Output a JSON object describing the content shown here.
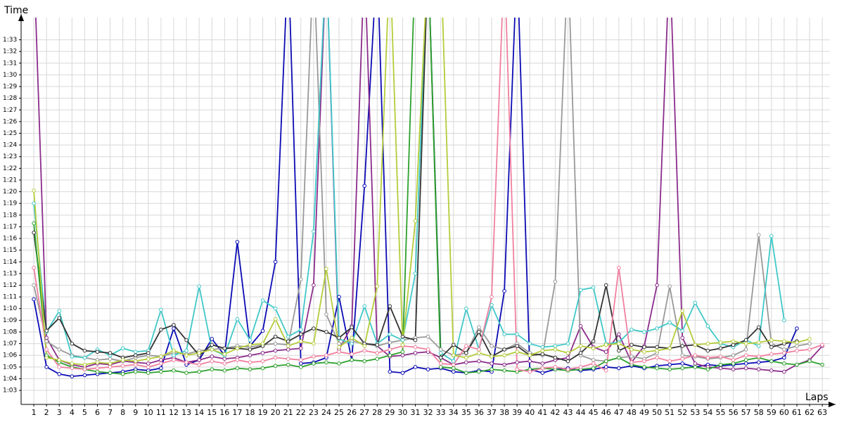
{
  "chart_data": {
    "type": "line",
    "x_label": "Laps",
    "y_label": "Time",
    "x": [
      1,
      2,
      3,
      4,
      5,
      6,
      7,
      8,
      9,
      10,
      11,
      12,
      13,
      14,
      15,
      16,
      17,
      18,
      19,
      20,
      21,
      22,
      23,
      24,
      25,
      26,
      27,
      28,
      29,
      30,
      31,
      32,
      33,
      34,
      35,
      36,
      37,
      38,
      39,
      40,
      41,
      42,
      43,
      44,
      45,
      46,
      47,
      48,
      49,
      50,
      51,
      52,
      53,
      54,
      55,
      56,
      57,
      58,
      59,
      60,
      61,
      62,
      63
    ],
    "xlim": [
      0,
      63.6
    ],
    "xticks": [
      1,
      2,
      3,
      4,
      5,
      6,
      7,
      8,
      9,
      10,
      11,
      12,
      13,
      14,
      15,
      16,
      17,
      18,
      19,
      20,
      21,
      22,
      23,
      24,
      25,
      26,
      27,
      28,
      29,
      30,
      31,
      32,
      33,
      34,
      35,
      36,
      37,
      38,
      39,
      40,
      41,
      42,
      43,
      44,
      45,
      46,
      47,
      48,
      49,
      50,
      51,
      52,
      53,
      54,
      55,
      56,
      57,
      58,
      59,
      60,
      61,
      62,
      63
    ],
    "ylim": [
      61.8,
      94.9
    ],
    "yticks": [
      {
        "value": 63,
        "label": "1:03"
      },
      {
        "value": 64,
        "label": "1:04"
      },
      {
        "value": 65,
        "label": "1:05"
      },
      {
        "value": 66,
        "label": "1:06"
      },
      {
        "value": 67,
        "label": "1:07"
      },
      {
        "value": 68,
        "label": "1:08"
      },
      {
        "value": 69,
        "label": "1:09"
      },
      {
        "value": 70,
        "label": "1:10"
      },
      {
        "value": 71,
        "label": "1:11"
      },
      {
        "value": 72,
        "label": "1:12"
      },
      {
        "value": 73,
        "label": "1:13"
      },
      {
        "value": 74,
        "label": "1:14"
      },
      {
        "value": 75,
        "label": "1:15"
      },
      {
        "value": 76,
        "label": "1:16"
      },
      {
        "value": 77,
        "label": "1:17"
      },
      {
        "value": 78,
        "label": "1:18"
      },
      {
        "value": 79,
        "label": "1:19"
      },
      {
        "value": 80,
        "label": "1:20"
      },
      {
        "value": 81,
        "label": "1:21"
      },
      {
        "value": 82,
        "label": "1:22"
      },
      {
        "value": 83,
        "label": "1:23"
      },
      {
        "value": 84,
        "label": "1:24"
      },
      {
        "value": 85,
        "label": "1:25"
      },
      {
        "value": 86,
        "label": "1:26"
      },
      {
        "value": 87,
        "label": "1:27"
      },
      {
        "value": 88,
        "label": "1:28"
      },
      {
        "value": 89,
        "label": "1:29"
      },
      {
        "value": 90,
        "label": "1:30"
      },
      {
        "value": 91,
        "label": "1:31"
      },
      {
        "value": 92,
        "label": "1:32"
      },
      {
        "value": 93,
        "label": "1:33"
      }
    ],
    "grid": true,
    "series": [
      {
        "color": "#0a0ab4",
        "values": [
          70.8,
          65.0,
          64.4,
          64.2,
          64.3,
          64.4,
          64.5,
          64.6,
          64.8,
          64.7,
          64.9,
          68.3,
          65.2,
          65.6,
          67.4,
          66.0,
          75.7,
          66.8,
          68.1,
          74.0,
          100,
          65.3,
          65.4,
          65.8,
          71.0,
          65.6,
          80.5,
          100,
          64.6,
          64.5,
          65.0,
          64.8,
          64.9,
          64.6,
          64.5,
          64.7,
          64.6,
          71.5,
          100,
          64.8,
          64.5,
          64.8,
          64.9,
          64.7,
          64.8,
          65.0,
          64.9,
          65.1,
          64.9,
          65.1,
          65.2,
          65.3,
          65.0,
          65.2,
          65.1,
          65.2,
          65.3,
          65.4,
          65.5,
          65.8,
          68.3,
          null,
          null
        ]
      },
      {
        "color": "#8b2c8b",
        "values": [
          100,
          67.5,
          65.6,
          65.2,
          65.0,
          65.3,
          65.2,
          65.5,
          65.4,
          65.3,
          65.6,
          65.8,
          65.4,
          65.6,
          65.9,
          65.7,
          65.8,
          66.0,
          66.2,
          66.4,
          66.5,
          66.6,
          72.0,
          100,
          66.5,
          68.5,
          100,
          66.8,
          65.9,
          66.0,
          66.2,
          66.3,
          65.8,
          65.2,
          65.4,
          65.5,
          65.3,
          65.2,
          65.4,
          65.5,
          65.3,
          65.6,
          65.8,
          68.5,
          66.7,
          66.3,
          67.8,
          65.4,
          66.8,
          72.0,
          100,
          67.5,
          65.3,
          65.0,
          64.9,
          64.8,
          64.9,
          64.8,
          64.7,
          64.6,
          65.2,
          65.6,
          66.8
        ]
      },
      {
        "color": "#999999",
        "values": [
          72.0,
          67.2,
          66.5,
          66.0,
          65.8,
          65.6,
          65.7,
          65.5,
          65.8,
          66.0,
          65.9,
          66.2,
          66.1,
          66.4,
          66.5,
          66.6,
          66.8,
          66.7,
          66.9,
          67.0,
          66.9,
          72.5,
          100,
          69.5,
          67.0,
          67.2,
          67.0,
          66.8,
          67.1,
          67.3,
          67.5,
          67.6,
          66.5,
          66.0,
          66.2,
          68.4,
          66.8,
          66.5,
          67.0,
          66.2,
          66.0,
          72.3,
          100,
          66.0,
          65.6,
          65.5,
          65.8,
          65.9,
          65.7,
          66.2,
          71.9,
          66.0,
          65.9,
          65.7,
          65.8,
          66.0,
          66.5,
          76.3,
          67.0,
          66.5,
          66.8,
          67.0,
          null
        ]
      },
      {
        "color": "#40c8c8",
        "values": [
          79.0,
          68.0,
          69.8,
          65.9,
          65.8,
          66.5,
          66.0,
          66.6,
          66.3,
          66.4,
          69.9,
          66.0,
          66.4,
          71.9,
          66.5,
          66.0,
          69.1,
          67.3,
          70.7,
          70.0,
          67.6,
          68.2,
          76.6,
          100,
          67.4,
          67.0,
          70.2,
          67.0,
          67.8,
          67.3,
          73.0,
          100,
          66.2,
          65.5,
          70.0,
          66.5,
          70.3,
          67.8,
          67.8,
          67.0,
          66.7,
          66.8,
          67.0,
          71.6,
          71.8,
          67.0,
          67.1,
          68.2,
          68.0,
          68.3,
          68.8,
          68.1,
          70.5,
          68.5,
          67.0,
          66.7,
          67.3,
          66.8,
          76.2,
          69.0,
          null,
          null,
          null
        ]
      },
      {
        "color": "#333333",
        "values": [
          76.5,
          68.1,
          69.2,
          67.0,
          66.4,
          66.3,
          66.2,
          65.8,
          66.0,
          66.2,
          68.2,
          68.6,
          67.3,
          66.0,
          66.9,
          66.6,
          66.6,
          66.5,
          66.8,
          67.6,
          67.2,
          67.8,
          68.3,
          68.0,
          67.5,
          68.4,
          67.0,
          66.9,
          70.2,
          67.6,
          67.3,
          100,
          65.8,
          66.9,
          66.2,
          68.0,
          65.9,
          66.5,
          66.8,
          66.0,
          66.1,
          65.8,
          65.5,
          66.2,
          67.2,
          72.0,
          66.4,
          66.9,
          66.7,
          66.7,
          66.6,
          66.8,
          66.9,
          66.4,
          66.6,
          66.9,
          67.3,
          68.4,
          66.7,
          67.0,
          67.2,
          null,
          null
        ]
      },
      {
        "color": "#2ca02c",
        "values": [
          77.3,
          66.0,
          65.4,
          65.0,
          64.8,
          64.6,
          64.5,
          64.4,
          64.6,
          64.5,
          64.6,
          64.7,
          64.5,
          64.6,
          64.8,
          64.7,
          64.9,
          64.8,
          64.9,
          65.1,
          65.2,
          65.0,
          65.3,
          65.4,
          65.3,
          65.6,
          65.5,
          65.7,
          66.0,
          66.3,
          100,
          100,
          65.0,
          64.9,
          64.5,
          64.6,
          64.8,
          64.7,
          64.6,
          64.8,
          64.9,
          64.8,
          64.7,
          64.8,
          64.9,
          65.5,
          65.8,
          65.2,
          65.0,
          64.9,
          64.8,
          64.9,
          65.0,
          64.8,
          65.2,
          65.3,
          65.6,
          65.8,
          65.5,
          65.3,
          65.2,
          65.5,
          65.2
        ]
      },
      {
        "color": "#f080a0",
        "values": [
          73.5,
          66.5,
          65.0,
          64.9,
          64.8,
          64.9,
          65.0,
          65.1,
          65.2,
          65.0,
          65.3,
          65.6,
          65.4,
          65.2,
          65.5,
          65.3,
          65.6,
          65.4,
          65.5,
          65.8,
          65.7,
          65.6,
          65.9,
          66.0,
          66.3,
          66.1,
          66.4,
          66.2,
          66.5,
          66.8,
          66.7,
          66.5,
          65.3,
          65.2,
          66.8,
          66.5,
          71.0,
          100,
          64.8,
          64.6,
          64.9,
          65.0,
          64.8,
          65.0,
          65.3,
          64.7,
          73.5,
          65.4,
          65.5,
          65.8,
          65.5,
          65.7,
          66.0,
          65.8,
          65.9,
          65.6,
          66.0,
          65.9,
          66.1,
          66.2,
          66.4,
          66.5,
          66.9
        ]
      },
      {
        "color": "#b5cc3a",
        "values": [
          80.1,
          65.8,
          65.6,
          65.3,
          65.2,
          65.4,
          65.3,
          65.6,
          65.5,
          65.7,
          65.9,
          66.4,
          66.0,
          66.2,
          66.5,
          66.1,
          66.6,
          66.9,
          67.0,
          69.1,
          66.8,
          67.2,
          67.0,
          73.4,
          66.7,
          67.5,
          66.8,
          71.9,
          100,
          66.9,
          77.5,
          100,
          100,
          66.0,
          65.8,
          66.2,
          65.9,
          66.0,
          66.3,
          66.0,
          66.4,
          66.5,
          66.2,
          66.8,
          66.6,
          66.9,
          67.0,
          66.5,
          66.3,
          66.4,
          66.6,
          69.8,
          66.9,
          67.0,
          67.1,
          67.2,
          67.0,
          67.1,
          67.3,
          67.2,
          67.1,
          67.4,
          null
        ]
      }
    ]
  }
}
